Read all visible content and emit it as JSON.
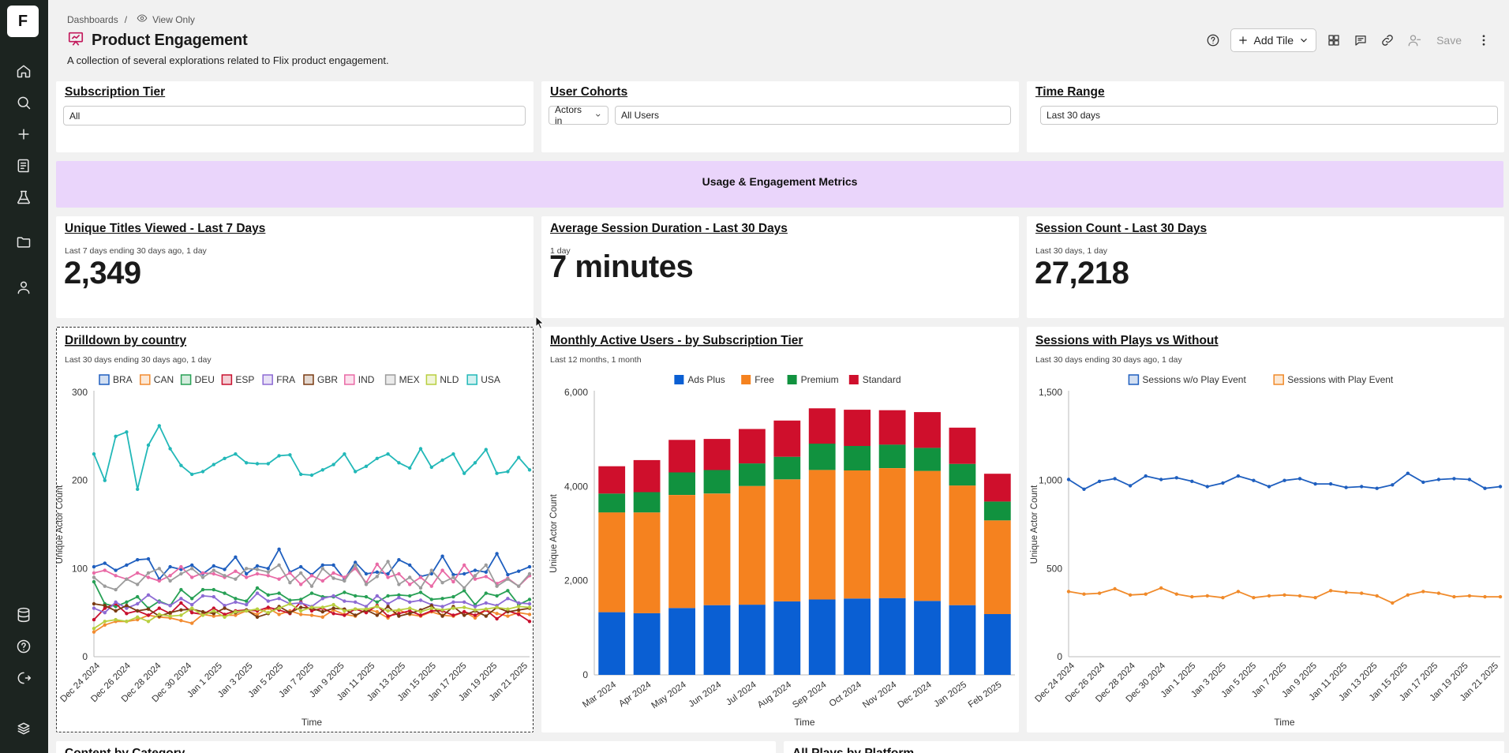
{
  "app": {
    "logo": "F",
    "rail": [
      "home-icon",
      "search-icon",
      "plus-icon",
      "notebook-icon",
      "flask-icon",
      "folder-icon",
      "user-icon",
      "database-icon",
      "help-icon",
      "logout-icon",
      "brand-icon"
    ]
  },
  "header": {
    "breadcrumb_root": "Dashboards",
    "breadcrumb_sep": "/",
    "view_mode": "View Only",
    "title": "Product Engagement",
    "description": "A collection of several explorations related to Flix product engagement."
  },
  "toolbar": {
    "add_tile": "Add Tile",
    "save": "Save",
    "icons": [
      "help-icon",
      "grid-icon",
      "comment-icon",
      "link-icon",
      "people-icon",
      "more-icon"
    ]
  },
  "filters": {
    "subscription_tier": {
      "title": "Subscription Tier",
      "value": "All"
    },
    "user_cohorts": {
      "title": "User Cohorts",
      "mode": "Actors in",
      "value": "All Users"
    },
    "time_range": {
      "title": "Time Range",
      "value": "Last 30 days"
    }
  },
  "banner": {
    "text": "Usage & Engagement Metrics"
  },
  "metrics": {
    "unique_titles": {
      "title": "Unique Titles Viewed - Last 7 Days",
      "sub": "Last 7 days ending 30 days ago, 1 day",
      "value": "2,349"
    },
    "avg_session": {
      "title": "Average Session Duration - Last 30 Days",
      "sub": "1 day",
      "value": "7 minutes"
    },
    "session_count": {
      "title": "Session Count - Last 30 Days",
      "sub": "Last 30 days, 1 day",
      "value": "27,218"
    }
  },
  "bottom_cards": {
    "left": "Content by Category",
    "right": "All Plays by Platform"
  },
  "colors": {
    "BRA": "#1f5fbf",
    "CAN": "#f28b30",
    "DEU": "#27a055",
    "ESP": "#c8102e",
    "FRA": "#8d6bd4",
    "GBR": "#7a3b12",
    "IND": "#e96aa6",
    "MEX": "#9c9c9c",
    "NLD": "#b8cf3f",
    "USA": "#22b8b8",
    "ads_plus": "#0a5fd3",
    "free": "#f5821f",
    "premium": "#11923f",
    "standard": "#cf0f2c",
    "sessions_without": "#1f5fbf",
    "sessions_with": "#f08a2a"
  },
  "chart_data": [
    {
      "type": "line",
      "title": "Drilldown by country",
      "subtitle": "Last 30 days ending 30 days ago, 1 day",
      "xlabel": "Time",
      "ylabel": "Unique Actor Count",
      "ylim": [
        0,
        300
      ],
      "yticks": [
        "0",
        "100",
        "200",
        "300"
      ],
      "xticks": [
        "Dec 24 2024",
        "Dec 26 2024",
        "Dec 28 2024",
        "Dec 30 2024",
        "Jan 1 2025",
        "Jan 3 2025",
        "Jan 5 2025",
        "Jan 7 2025",
        "Jan 9 2025",
        "Jan 11 2025",
        "Jan 13 2025",
        "Jan 15 2025",
        "Jan 17 2025",
        "Jan 19 2025",
        "Jan 21 2025"
      ],
      "legend": "top",
      "series": [
        {
          "name": "BRA",
          "values": [
            102,
            106,
            98,
            104,
            110,
            111,
            88,
            102,
            99,
            104,
            94,
            103,
            99,
            113,
            94,
            103,
            100,
            122,
            96,
            102,
            93,
            104,
            104,
            88,
            107,
            94,
            96,
            94,
            110,
            104,
            91,
            94,
            114,
            93,
            94,
            98,
            96,
            117,
            93,
            97,
            102
          ]
        },
        {
          "name": "CAN",
          "values": [
            28,
            36,
            40,
            40,
            42,
            47,
            45,
            44,
            41,
            38,
            48,
            46,
            47,
            47,
            52,
            48,
            55,
            48,
            52,
            48,
            47,
            45,
            53,
            48,
            46,
            54,
            51,
            44,
            53,
            48,
            46,
            51,
            47,
            46,
            51,
            44,
            53,
            49,
            46,
            50,
            48
          ]
        },
        {
          "name": "DEU",
          "values": [
            85,
            60,
            57,
            62,
            68,
            55,
            63,
            58,
            76,
            66,
            76,
            76,
            72,
            66,
            63,
            78,
            70,
            72,
            64,
            65,
            72,
            68,
            68,
            73,
            69,
            68,
            62,
            69,
            70,
            69,
            73,
            65,
            66,
            68,
            75,
            59,
            72,
            69,
            75,
            59,
            65
          ]
        },
        {
          "name": "ESP",
          "values": [
            42,
            55,
            60,
            49,
            52,
            47,
            55,
            49,
            61,
            50,
            48,
            55,
            48,
            52,
            53,
            52,
            56,
            53,
            49,
            62,
            52,
            55,
            49,
            47,
            54,
            50,
            58,
            46,
            49,
            52,
            47,
            52,
            52,
            47,
            51,
            47,
            53,
            43,
            52,
            48,
            40
          ]
        },
        {
          "name": "FRA",
          "values": [
            55,
            50,
            62,
            55,
            60,
            70,
            62,
            58,
            66,
            59,
            69,
            68,
            58,
            62,
            59,
            72,
            63,
            66,
            60,
            61,
            57,
            66,
            69,
            63,
            62,
            57,
            69,
            60,
            67,
            62,
            64,
            59,
            57,
            62,
            62,
            57,
            61,
            58,
            66,
            61,
            60
          ]
        },
        {
          "name": "GBR",
          "values": [
            60,
            58,
            52,
            58,
            52,
            54,
            46,
            50,
            53,
            54,
            51,
            49,
            55,
            50,
            53,
            45,
            49,
            57,
            50,
            56,
            55,
            51,
            55,
            54,
            47,
            53,
            47,
            57,
            46,
            49,
            53,
            58,
            46,
            57,
            47,
            52,
            46,
            56,
            51,
            53,
            55
          ]
        },
        {
          "name": "IND",
          "values": [
            95,
            98,
            92,
            88,
            95,
            90,
            86,
            92,
            102,
            90,
            95,
            94,
            90,
            97,
            90,
            94,
            92,
            88,
            95,
            82,
            92,
            86,
            95,
            90,
            100,
            84,
            105,
            90,
            94,
            82,
            90,
            80,
            98,
            85,
            104,
            88,
            91,
            83,
            89,
            80,
            92
          ]
        },
        {
          "name": "MEX",
          "values": [
            90,
            80,
            76,
            88,
            82,
            95,
            100,
            86,
            94,
            100,
            90,
            98,
            92,
            88,
            100,
            99,
            96,
            104,
            84,
            95,
            80,
            100,
            89,
            86,
            104,
            82,
            91,
            108,
            82,
            90,
            78,
            98,
            84,
            90,
            78,
            92,
            104,
            80,
            88,
            80,
            94
          ]
        },
        {
          "name": "NLD",
          "values": [
            32,
            40,
            42,
            40,
            45,
            40,
            48,
            46,
            47,
            55,
            47,
            52,
            45,
            51,
            52,
            54,
            50,
            55,
            60,
            52,
            56,
            56,
            59,
            52,
            54,
            54,
            57,
            52,
            53,
            55,
            51,
            55,
            53,
            55,
            56,
            53,
            54,
            56,
            54,
            57,
            56
          ]
        },
        {
          "name": "USA",
          "values": [
            230,
            200,
            250,
            255,
            190,
            240,
            262,
            236,
            217,
            207,
            210,
            218,
            225,
            230,
            220,
            219,
            219,
            228,
            229,
            207,
            206,
            212,
            218,
            230,
            210,
            216,
            225,
            230,
            220,
            214,
            236,
            215,
            223,
            230,
            208,
            220,
            235,
            208,
            210,
            226,
            212
          ]
        }
      ]
    },
    {
      "type": "bar",
      "stacked": true,
      "title": "Monthly Active Users - by Subscription Tier",
      "subtitle": "Last 12 months, 1 month",
      "xlabel": "Time",
      "ylabel": "Unique Actor Count",
      "ylim": [
        0,
        6000
      ],
      "yticks": [
        "0",
        "2,000",
        "4,000",
        "6,000"
      ],
      "legend": "top",
      "categories": [
        "Mar 2024",
        "Apr 2024",
        "May 2024",
        "Jun 2024",
        "Jul 2024",
        "Aug 2024",
        "Sep 2024",
        "Oct 2024",
        "Nov 2024",
        "Dec 2024",
        "Jan 2025",
        "Feb 2025"
      ],
      "series": [
        {
          "name": "Ads Plus",
          "values": [
            1330,
            1310,
            1420,
            1480,
            1490,
            1560,
            1600,
            1620,
            1630,
            1570,
            1480,
            1290
          ]
        },
        {
          "name": "Free",
          "values": [
            2120,
            2140,
            2400,
            2370,
            2520,
            2590,
            2750,
            2720,
            2760,
            2760,
            2540,
            1990
          ]
        },
        {
          "name": "Premium",
          "values": [
            400,
            430,
            480,
            500,
            480,
            480,
            560,
            520,
            500,
            490,
            460,
            400
          ]
        },
        {
          "name": "Standard",
          "values": [
            580,
            680,
            690,
            660,
            730,
            770,
            750,
            770,
            730,
            760,
            770,
            590
          ]
        }
      ]
    },
    {
      "type": "line",
      "title": "Sessions with Plays vs Without",
      "subtitle": "Last 30 days ending 30 days ago, 1 day",
      "xlabel": "Time",
      "ylabel": "Unique Actor Count",
      "ylim": [
        0,
        1500
      ],
      "yticks": [
        "0",
        "500",
        "1,000",
        "1,500"
      ],
      "xticks": [
        "Dec 24 2024",
        "Dec 26 2024",
        "Dec 28 2024",
        "Dec 30 2024",
        "Jan 1 2025",
        "Jan 3 2025",
        "Jan 5 2025",
        "Jan 7 2025",
        "Jan 9 2025",
        "Jan 11 2025",
        "Jan 13 2025",
        "Jan 15 2025",
        "Jan 17 2025",
        "Jan 19 2025",
        "Jan 21 2025"
      ],
      "legend": "top",
      "series": [
        {
          "name": "Sessions w/o Play Event",
          "values": [
            1005,
            950,
            995,
            1010,
            970,
            1025,
            1005,
            1015,
            995,
            965,
            985,
            1025,
            1000,
            965,
            1000,
            1010,
            980,
            980,
            960,
            965,
            955,
            975,
            1040,
            990,
            1005,
            1010,
            1005,
            955,
            965
          ]
        },
        {
          "name": "Sessions with Play Event",
          "values": [
            370,
            355,
            360,
            385,
            350,
            355,
            390,
            355,
            340,
            345,
            335,
            370,
            335,
            345,
            350,
            345,
            335,
            375,
            365,
            360,
            345,
            305,
            350,
            370,
            360,
            340,
            345,
            340,
            340
          ]
        }
      ]
    }
  ]
}
